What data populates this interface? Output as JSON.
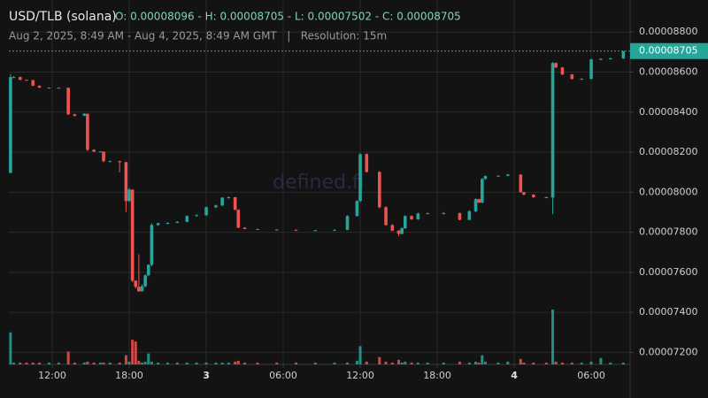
{
  "chart_data": {
    "type": "candlestick",
    "title": "USD/TLB (solana)",
    "summary": "O: 0.00008096 - H: 0.00008705 - L: 0.00007502 - C: 0.00008705",
    "subtitle": "Aug 2, 2025, 8:49 AM - Aug 4, 2025, 8:49 AM GMT   |   Resolution: 15m",
    "watermark": "defined.fi",
    "last_price_label": "0.00008705",
    "up_color": "#26a69a",
    "down_color": "#ef5350",
    "grid": true,
    "xlim": [
      8.62,
      57.03
    ],
    "xticks": [
      {
        "value": 12,
        "label": "12:00"
      },
      {
        "value": 18,
        "label": "18:00"
      },
      {
        "value": 24,
        "label": "3"
      },
      {
        "value": 30,
        "label": "06:00"
      },
      {
        "value": 36,
        "label": "12:00"
      },
      {
        "value": 42,
        "label": "18:00"
      },
      {
        "value": 48,
        "label": "4"
      },
      {
        "value": 54,
        "label": "06:00"
      }
    ],
    "ylim": [
      7.14e-05,
      8.96e-05
    ],
    "yticks": [
      {
        "value": 7.2e-05,
        "label": "0.00007200"
      },
      {
        "value": 7.4e-05,
        "label": "0.00007400"
      },
      {
        "value": 7.6e-05,
        "label": "0.00007600"
      },
      {
        "value": 7.8e-05,
        "label": "0.00007800"
      },
      {
        "value": 8e-05,
        "label": "0.00008000"
      },
      {
        "value": 8.2e-05,
        "label": "0.00008200"
      },
      {
        "value": 8.4e-05,
        "label": "0.00008400"
      },
      {
        "value": 8.6e-05,
        "label": "0.00008600"
      },
      {
        "value": 8.8e-05,
        "label": "0.00008800"
      }
    ],
    "x": [
      8.75,
      9,
      9.5,
      10,
      10.5,
      11,
      11.75,
      12.5,
      13.25,
      13.75,
      14.5,
      14.75,
      15.25,
      15.75,
      16,
      16.5,
      17.25,
      17.75,
      18,
      18.25,
      18.5,
      18.75,
      19,
      19.25,
      19.5,
      19.75,
      20.25,
      21,
      21.75,
      22.5,
      23.25,
      24,
      24.75,
      25.25,
      25.75,
      26.25,
      26.5,
      27,
      28,
      29.5,
      31,
      32.5,
      34,
      35,
      35.75,
      36,
      36.5,
      37.5,
      38,
      38.5,
      39,
      39.25,
      39.5,
      40,
      40.5,
      41.25,
      42.5,
      43.75,
      44.5,
      45,
      45.25,
      45.5,
      45.75,
      46.75,
      47.5,
      48.5,
      48.75,
      49.5,
      50.5,
      51,
      51.25,
      51.75,
      52.5,
      53.25,
      54,
      54.75,
      55.5,
      56.5
    ],
    "open": [
      8.096e-05,
      8.575e-05,
      8.575e-05,
      8.561e-05,
      8.56e-05,
      8.532e-05,
      8.522e-05,
      8.522e-05,
      8.522e-05,
      8.389e-05,
      8.382e-05,
      8.392e-05,
      8.212e-05,
      8.203e-05,
      8.203e-05,
      8.155e-05,
      8.155e-05,
      8.15e-05,
      7.956e-05,
      8.013e-05,
      7.558e-05,
      7.527e-05,
      7.505e-05,
      7.53e-05,
      7.585e-05,
      7.637e-05,
      7.836e-05,
      7.845e-05,
      7.847e-05,
      7.852e-05,
      7.881e-05,
      7.885e-05,
      7.925e-05,
      7.934e-05,
      7.973e-05,
      7.975e-05,
      7.912e-05,
      7.823e-05,
      7.816e-05,
      7.814e-05,
      7.812e-05,
      7.81e-05,
      7.81e-05,
      7.812e-05,
      7.881e-05,
      7.956e-05,
      8.19e-05,
      8.101e-05,
      7.925e-05,
      7.836e-05,
      7.808e-05,
      7.792e-05,
      7.82e-05,
      7.881e-05,
      7.865e-05,
      7.894e-05,
      7.895e-05,
      7.896e-05,
      7.862e-05,
      7.905e-05,
      7.965e-05,
      7.948e-05,
      8.066e-05,
      8.08e-05,
      8.082e-05,
      8.088e-05,
      8e-05,
      7.988e-05,
      7.975e-05,
      7.973e-05,
      8.645e-05,
      8.623e-05,
      8.588e-05,
      8.566e-05,
      8.566e-05,
      8.663e-05,
      8.665e-05,
      8.668e-05
    ],
    "high": [
      8.59e-05,
      8.58e-05,
      8.578e-05,
      8.562e-05,
      8.56e-05,
      8.533e-05,
      8.524e-05,
      8.523e-05,
      8.522e-05,
      8.392e-05,
      8.395e-05,
      8.392e-05,
      8.214e-05,
      8.205e-05,
      8.203e-05,
      8.158e-05,
      8.158e-05,
      8.152e-05,
      8.02e-05,
      8.013e-05,
      7.56e-05,
      7.69e-05,
      7.54e-05,
      7.59e-05,
      7.64e-05,
      7.845e-05,
      7.848e-05,
      7.85e-05,
      7.855e-05,
      7.885e-05,
      7.89e-05,
      7.928e-05,
      7.938e-05,
      7.975e-05,
      7.978e-05,
      7.976e-05,
      7.915e-05,
      7.825e-05,
      7.818e-05,
      7.815e-05,
      7.814e-05,
      7.812e-05,
      7.815e-05,
      7.885e-05,
      7.96e-05,
      8.195e-05,
      8.195e-05,
      8.105e-05,
      7.93e-05,
      7.84e-05,
      7.81e-05,
      7.825e-05,
      7.885e-05,
      7.884e-05,
      7.898e-05,
      7.898e-05,
      7.9e-05,
      7.898e-05,
      7.91e-05,
      7.97e-05,
      7.968e-05,
      8.07e-05,
      8.085e-05,
      8.085e-05,
      8.092e-05,
      8.09e-05,
      8.002e-05,
      7.99e-05,
      7.978e-05,
      8.65e-05,
      8.648e-05,
      8.625e-05,
      8.59e-05,
      8.57e-05,
      8.668e-05,
      8.67e-05,
      8.672e-05,
      8.705e-05
    ],
    "low": [
      8.096e-05,
      8.57e-05,
      8.56e-05,
      8.558e-05,
      8.53e-05,
      8.52e-05,
      8.52e-05,
      8.52e-05,
      8.385e-05,
      8.378e-05,
      8.38e-05,
      8.205e-05,
      8.2e-05,
      8.2e-05,
      8.15e-05,
      8.152e-05,
      8.1e-05,
      7.901e-05,
      7.95e-05,
      7.55e-05,
      7.52e-05,
      7.502e-05,
      7.505e-05,
      7.525e-05,
      7.58e-05,
      7.63e-05,
      7.832e-05,
      7.84e-05,
      7.845e-05,
      7.85e-05,
      7.878e-05,
      7.882e-05,
      7.92e-05,
      7.93e-05,
      7.968e-05,
      7.91e-05,
      7.82e-05,
      7.815e-05,
      7.812e-05,
      7.81e-05,
      7.809e-05,
      7.808e-05,
      7.808e-05,
      7.81e-05,
      7.878e-05,
      7.95e-05,
      8.098e-05,
      7.92e-05,
      7.833e-05,
      7.805e-05,
      7.78e-05,
      7.79e-05,
      7.815e-05,
      7.862e-05,
      7.862e-05,
      7.89e-05,
      7.89e-05,
      7.86e-05,
      7.86e-05,
      7.9e-05,
      7.945e-05,
      7.945e-05,
      8.062e-05,
      8.078e-05,
      8.08e-05,
      7.998e-05,
      7.985e-05,
      7.972e-05,
      7.97e-05,
      7.89e-05,
      8.62e-05,
      8.585e-05,
      8.562e-05,
      8.564e-05,
      8.562e-05,
      8.66e-05,
      8.662e-05,
      8.665e-05
    ],
    "close": [
      8.575e-05,
      8.575e-05,
      8.561e-05,
      8.56e-05,
      8.532e-05,
      8.522e-05,
      8.522e-05,
      8.522e-05,
      8.389e-05,
      8.382e-05,
      8.392e-05,
      8.212e-05,
      8.203e-05,
      8.203e-05,
      8.155e-05,
      8.155e-05,
      8.15e-05,
      7.956e-05,
      8.013e-05,
      7.558e-05,
      7.527e-05,
      7.505e-05,
      7.53e-05,
      7.585e-05,
      7.637e-05,
      7.836e-05,
      7.845e-05,
      7.847e-05,
      7.852e-05,
      7.881e-05,
      7.885e-05,
      7.925e-05,
      7.934e-05,
      7.973e-05,
      7.975e-05,
      7.912e-05,
      7.823e-05,
      7.816e-05,
      7.814e-05,
      7.812e-05,
      7.81e-05,
      7.81e-05,
      7.812e-05,
      7.881e-05,
      7.956e-05,
      8.19e-05,
      8.101e-05,
      7.925e-05,
      7.836e-05,
      7.808e-05,
      7.792e-05,
      7.82e-05,
      7.881e-05,
      7.865e-05,
      7.894e-05,
      7.895e-05,
      7.896e-05,
      7.862e-05,
      7.905e-05,
      7.965e-05,
      7.948e-05,
      8.066e-05,
      8.08e-05,
      8.082e-05,
      8.088e-05,
      8e-05,
      7.988e-05,
      7.975e-05,
      7.973e-05,
      8.645e-05,
      8.623e-05,
      8.588e-05,
      8.566e-05,
      8.566e-05,
      8.663e-05,
      8.665e-05,
      8.668e-05,
      8.705e-05
    ],
    "volume": [
      35,
      2,
      2,
      2,
      2,
      2,
      2,
      2,
      14,
      2,
      2,
      3,
      2,
      2,
      2,
      2,
      2,
      10,
      3,
      27,
      25,
      4,
      2,
      3,
      12,
      3,
      2,
      2,
      2,
      2,
      2,
      2,
      2,
      2,
      2,
      3,
      4,
      2,
      2,
      2,
      2,
      2,
      2,
      2,
      4,
      20,
      3,
      8,
      3,
      2,
      5,
      2,
      3,
      2,
      2,
      2,
      2,
      3,
      2,
      3,
      2,
      10,
      3,
      2,
      3,
      6,
      2,
      2,
      2,
      60,
      3,
      2,
      2,
      2,
      3,
      7,
      2,
      2
    ]
  }
}
